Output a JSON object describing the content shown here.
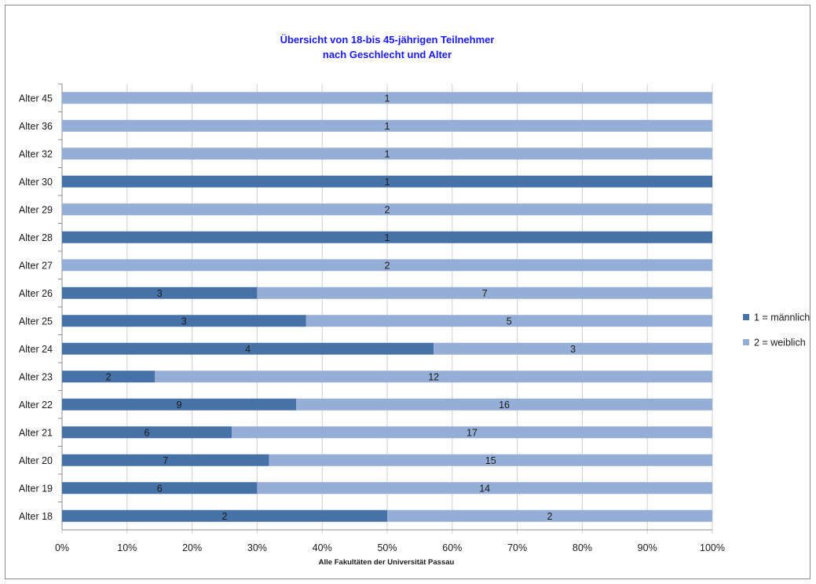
{
  "chart_data": {
    "type": "bar",
    "orientation": "horizontal",
    "stacked": "percent",
    "title_lines": [
      "Übersicht von 18-bis 45-jährigen Teilnehmer",
      "nach Geschlecht und Alter"
    ],
    "xlabel": "Alle Fakultäten der Universität Passau",
    "xlim": [
      0,
      100
    ],
    "xticks": [
      "0%",
      "10%",
      "20%",
      "30%",
      "40%",
      "50%",
      "60%",
      "70%",
      "80%",
      "90%",
      "100%"
    ],
    "grid": true,
    "legend_position": "right",
    "categories": [
      "Alter 18",
      "Alter 19",
      "Alter 20",
      "Alter 21",
      "Alter 22",
      "Alter 23",
      "Alter 24",
      "Alter 25",
      "Alter 26",
      "Alter 27",
      "Alter 28",
      "Alter 29",
      "Alter 30",
      "Alter 32",
      "Alter 36",
      "Alter 45"
    ],
    "series": [
      {
        "name": "1 = männlich",
        "color": "#4672a8",
        "values": [
          2,
          6,
          7,
          6,
          9,
          2,
          4,
          3,
          3,
          0,
          1,
          0,
          1,
          0,
          0,
          0
        ]
      },
      {
        "name": "2 = weiblich",
        "color": "#95aed5",
        "values": [
          2,
          14,
          15,
          17,
          16,
          12,
          3,
          5,
          7,
          2,
          0,
          2,
          0,
          1,
          1,
          1
        ]
      }
    ]
  }
}
